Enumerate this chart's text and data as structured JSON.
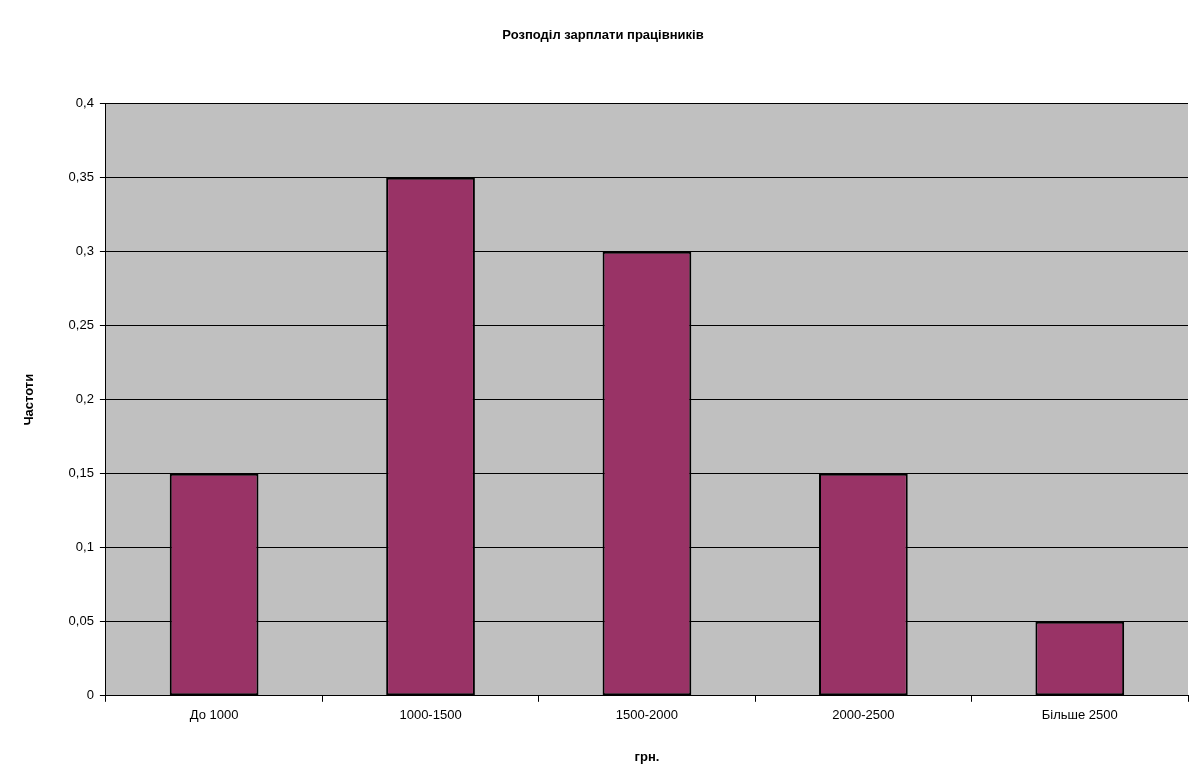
{
  "chart_data": {
    "type": "bar",
    "title": "Розподіл зарплати працівників",
    "xlabel": "грн.",
    "ylabel": "Частоти",
    "categories": [
      "До 1000",
      "1000-1500",
      "1500-2000",
      "2000-2500",
      "Більше 2500"
    ],
    "values": [
      0.15,
      0.35,
      0.3,
      0.15,
      0.05
    ],
    "color": "#993366",
    "ylim": [
      0,
      0.4
    ],
    "yticks": [
      0,
      {
        "value": 0.05,
        "label": "0,05"
      },
      {
        "value": 0.1,
        "label": "0,1"
      },
      {
        "value": 0.15,
        "label": "0,15"
      },
      {
        "value": 0.2,
        "label": "0,2"
      },
      {
        "value": 0.25,
        "label": "0,25"
      },
      {
        "value": 0.3,
        "label": "0,3"
      },
      {
        "value": 0.35,
        "label": "0,35"
      },
      {
        "value": 0.4,
        "label": "0,4"
      }
    ],
    "grid": "y",
    "legend": false
  }
}
